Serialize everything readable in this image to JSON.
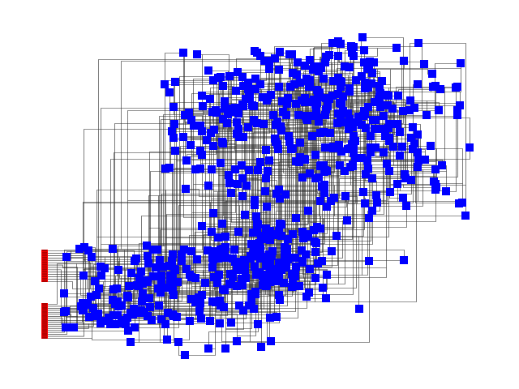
{
  "diagram": {
    "type": "orthogonal-routed-netlist-layout",
    "node_color": "#0000ff",
    "terminal_color": "#ff0000",
    "edge_color": "#000000",
    "background": "#ffffff",
    "blue_node_count": 700,
    "terminal_group_count": 2,
    "terminal_pins_per_group": [
      14,
      18
    ]
  }
}
